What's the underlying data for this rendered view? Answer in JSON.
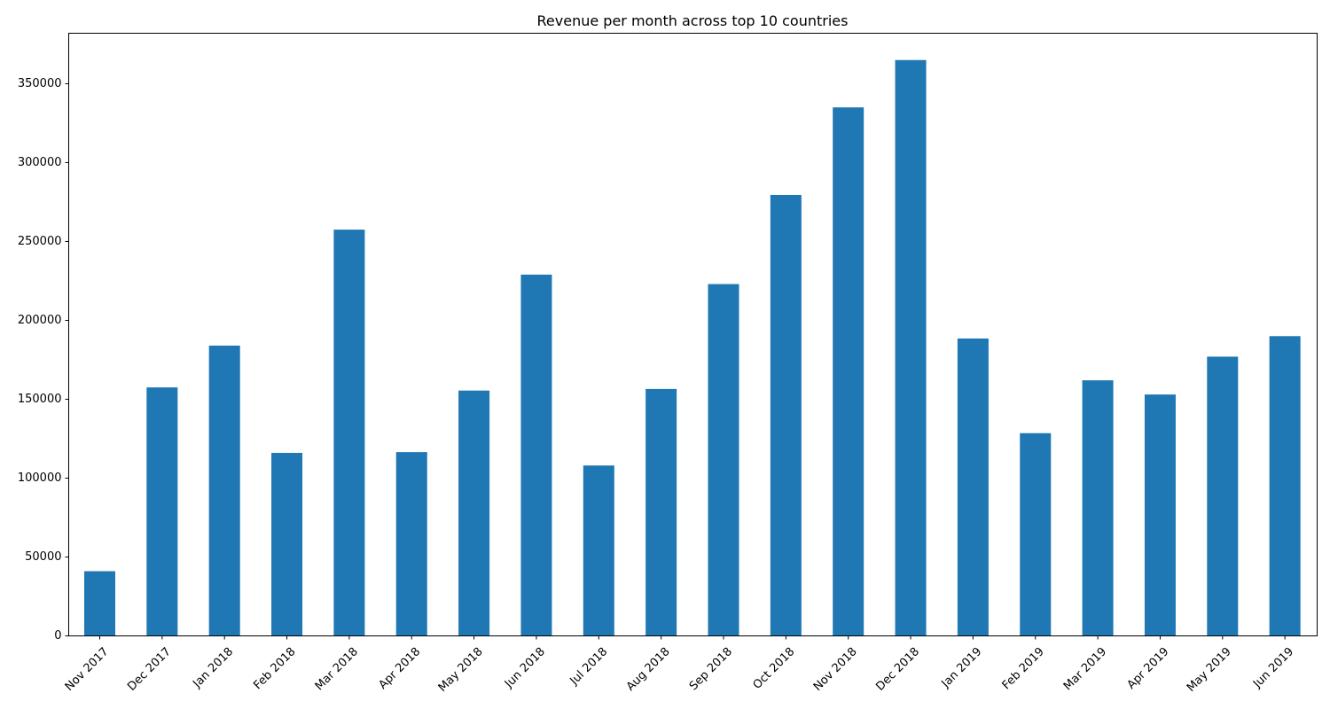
{
  "chart_data": {
    "type": "bar",
    "title": "Revenue per month across top 10 countries",
    "xlabel": "",
    "ylabel": "",
    "categories": [
      "Nov 2017",
      "Dec 2017",
      "Jan 2018",
      "Feb 2018",
      "Mar 2018",
      "Apr 2018",
      "May 2018",
      "Jun 2018",
      "Jul 2018",
      "Aug 2018",
      "Sep 2018",
      "Oct 2018",
      "Nov 2018",
      "Dec 2018",
      "Jan 2019",
      "Feb 2019",
      "Mar 2019",
      "Apr 2019",
      "May 2019",
      "Jun 2019"
    ],
    "values": [
      41000,
      157500,
      184000,
      116000,
      257500,
      116500,
      155500,
      229000,
      108000,
      156500,
      223000,
      279500,
      335000,
      365000,
      188500,
      128500,
      162000,
      153000,
      177000,
      190000
    ],
    "ylim": [
      0,
      382000
    ],
    "yticks": [
      0,
      50000,
      100000,
      150000,
      200000,
      250000,
      300000,
      350000
    ],
    "ytick_labels": [
      "0",
      "50000",
      "100000",
      "150000",
      "200000",
      "250000",
      "300000",
      "350000"
    ],
    "grid": false,
    "legend": "none",
    "bar_color": "#1f77b4"
  }
}
